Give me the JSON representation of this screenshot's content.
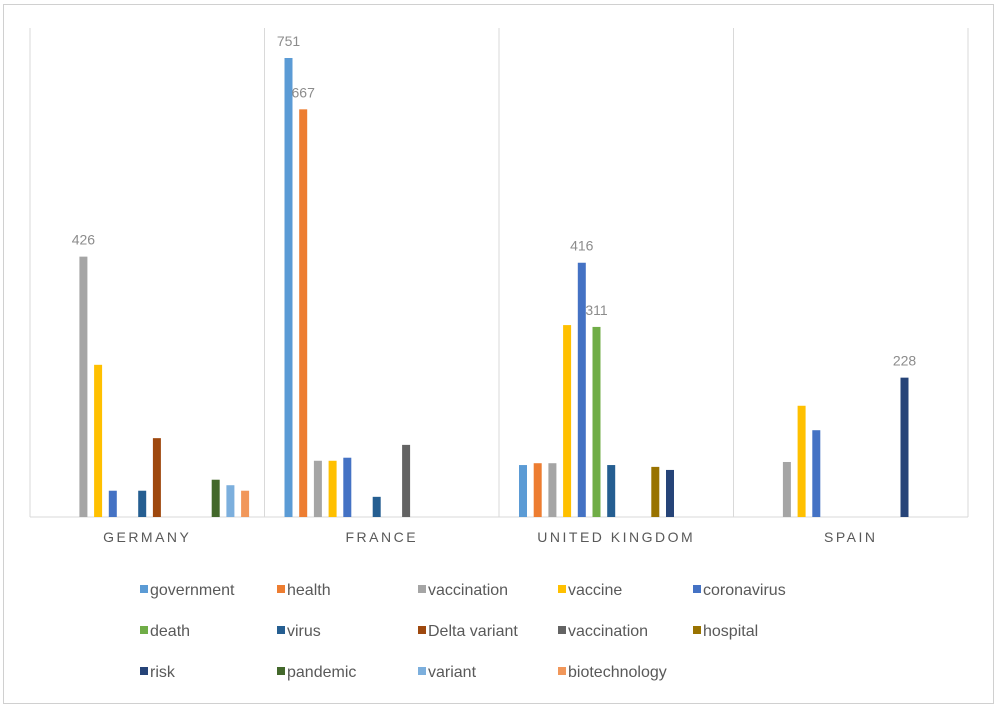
{
  "chart_data": {
    "type": "bar",
    "title": "",
    "xlabel": "",
    "ylabel": "",
    "ylim": [
      0,
      780
    ],
    "grid": false,
    "legend_position": "bottom",
    "categories": [
      "GERMANY",
      "FRANCE",
      "UNITED KINGDOM",
      "SPAIN"
    ],
    "series": [
      {
        "name": "government",
        "color": "#5B9BD5",
        "values": [
          null,
          751,
          85,
          null
        ]
      },
      {
        "name": "health",
        "color": "#ED7D31",
        "values": [
          null,
          667,
          88,
          null
        ]
      },
      {
        "name": "vaccination",
        "color": "#A5A5A5",
        "values": [
          426,
          92,
          88,
          90
        ]
      },
      {
        "name": "vaccine",
        "color": "#FFC000",
        "values": [
          249,
          92,
          314,
          182
        ]
      },
      {
        "name": "coronavirus",
        "color": "#4472C4",
        "values": [
          43,
          97,
          416,
          142
        ]
      },
      {
        "name": "death",
        "color": "#70AD47",
        "values": [
          null,
          null,
          311,
          null
        ]
      },
      {
        "name": "virus",
        "color": "#255E91",
        "values": [
          43,
          33,
          85,
          null
        ]
      },
      {
        "name": "Delta variant",
        "color": "#9E480E",
        "values": [
          129,
          null,
          null,
          null
        ]
      },
      {
        "name": "vaccination",
        "color": "#636363",
        "values": [
          null,
          118,
          null,
          null
        ]
      },
      {
        "name": "hospital",
        "color": "#997300",
        "values": [
          null,
          null,
          82,
          null
        ]
      },
      {
        "name": "risk",
        "color": "#264478",
        "values": [
          null,
          null,
          77,
          228
        ]
      },
      {
        "name": "pandemic",
        "color": "#43682B",
        "values": [
          61,
          null,
          null,
          null
        ]
      },
      {
        "name": "variant",
        "color": "#7CAFDD",
        "values": [
          52,
          null,
          null,
          null
        ]
      },
      {
        "name": "biotechnology",
        "color": "#F1975A",
        "values": [
          43,
          null,
          null,
          null
        ]
      }
    ],
    "data_labels": [
      {
        "category": 0,
        "series": 2,
        "text": "426"
      },
      {
        "category": 1,
        "series": 0,
        "text": "751"
      },
      {
        "category": 1,
        "series": 1,
        "text": "667"
      },
      {
        "category": 2,
        "series": 4,
        "text": "416"
      },
      {
        "category": 2,
        "series": 5,
        "text": "311"
      },
      {
        "category": 3,
        "series": 10,
        "text": "228"
      }
    ]
  }
}
